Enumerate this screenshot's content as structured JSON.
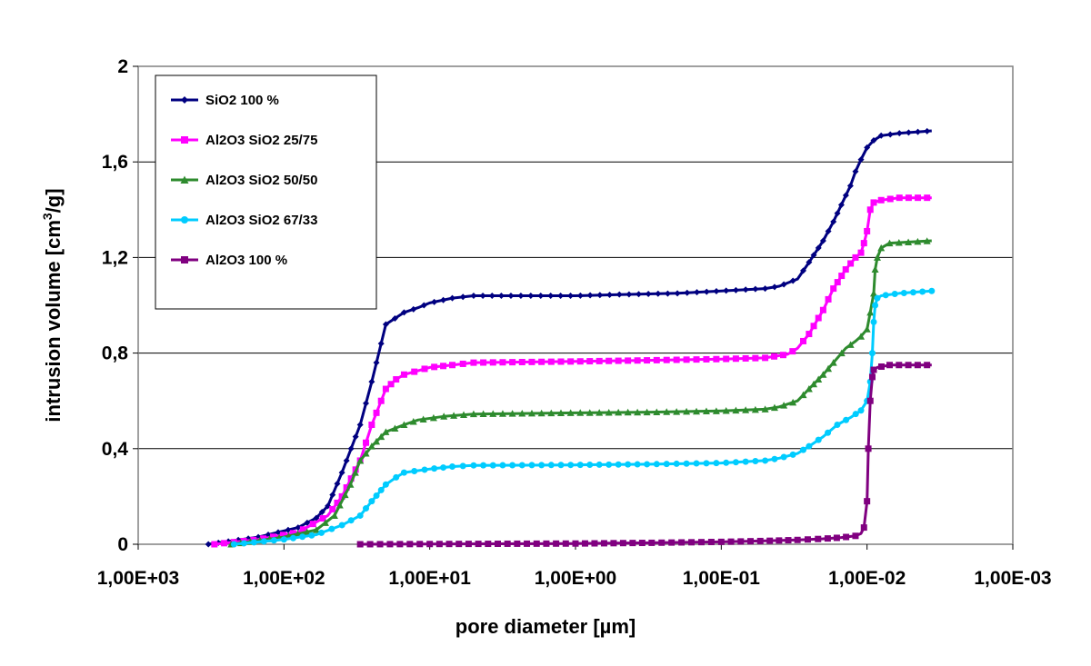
{
  "chart_data": {
    "type": "line",
    "xlabel": "pore diameter [µm]",
    "ylabel_main": "intrusion volume [cm",
    "ylabel_sup": "3",
    "ylabel_tail": "/g]",
    "x_scale": "log",
    "x_reversed": true,
    "xlim": [
      1000,
      0.001
    ],
    "ylim": [
      0,
      2
    ],
    "x_ticks": [
      1000,
      100,
      10,
      1,
      0.1,
      0.01,
      0.001
    ],
    "x_tick_labels": [
      "1,00E+03",
      "1,00E+02",
      "1,00E+01",
      "1,00E+00",
      "1,00E-01",
      "1,00E-02",
      "1,00E-03"
    ],
    "y_ticks": [
      0,
      0.4,
      0.8,
      1.2,
      1.6,
      2
    ],
    "y_tick_labels": [
      "0",
      "0,4",
      "0,8",
      "1,2",
      "1,6",
      "2"
    ],
    "grid": "horizontal major",
    "legend_position": "top-left inside",
    "series": [
      {
        "name": "SiO2 100 %",
        "color": "#000080",
        "marker": "diamond",
        "points": [
          [
            330,
            0.0
          ],
          [
            150,
            0.03
          ],
          [
            80,
            0.07
          ],
          [
            60,
            0.11
          ],
          [
            50,
            0.16
          ],
          [
            40,
            0.3
          ],
          [
            30,
            0.5
          ],
          [
            25,
            0.68
          ],
          [
            20,
            0.92
          ],
          [
            15,
            0.97
          ],
          [
            12,
            0.99
          ],
          [
            10,
            1.01
          ],
          [
            7,
            1.03
          ],
          [
            5,
            1.04
          ],
          [
            3,
            1.04
          ],
          [
            1,
            1.04
          ],
          [
            0.5,
            1.045
          ],
          [
            0.2,
            1.05
          ],
          [
            0.1,
            1.06
          ],
          [
            0.05,
            1.07
          ],
          [
            0.04,
            1.08
          ],
          [
            0.03,
            1.11
          ],
          [
            0.025,
            1.18
          ],
          [
            0.02,
            1.27
          ],
          [
            0.017,
            1.35
          ],
          [
            0.015,
            1.42
          ],
          [
            0.013,
            1.5
          ],
          [
            0.012,
            1.56
          ],
          [
            0.011,
            1.61
          ],
          [
            0.01,
            1.66
          ],
          [
            0.009,
            1.69
          ],
          [
            0.008,
            1.71
          ],
          [
            0.006,
            1.72
          ],
          [
            0.0036,
            1.73
          ]
        ]
      },
      {
        "name": "Al2O3 SiO2 25/75",
        "color": "#FF00FF",
        "marker": "square",
        "points": [
          [
            300,
            0.0
          ],
          [
            150,
            0.02
          ],
          [
            80,
            0.05
          ],
          [
            50,
            0.12
          ],
          [
            40,
            0.2
          ],
          [
            30,
            0.35
          ],
          [
            25,
            0.5
          ],
          [
            20,
            0.65
          ],
          [
            17,
            0.69
          ],
          [
            15,
            0.71
          ],
          [
            10,
            0.74
          ],
          [
            7,
            0.75
          ],
          [
            5,
            0.76
          ],
          [
            1,
            0.765
          ],
          [
            0.3,
            0.77
          ],
          [
            0.1,
            0.775
          ],
          [
            0.05,
            0.78
          ],
          [
            0.035,
            0.795
          ],
          [
            0.03,
            0.82
          ],
          [
            0.025,
            0.88
          ],
          [
            0.02,
            0.98
          ],
          [
            0.017,
            1.07
          ],
          [
            0.014,
            1.15
          ],
          [
            0.012,
            1.2
          ],
          [
            0.011,
            1.22
          ],
          [
            0.0105,
            1.26
          ],
          [
            0.01,
            1.31
          ],
          [
            0.0095,
            1.4
          ],
          [
            0.009,
            1.43
          ],
          [
            0.008,
            1.44
          ],
          [
            0.006,
            1.45
          ],
          [
            0.0036,
            1.45
          ]
        ]
      },
      {
        "name": "Al2O3 SiO2 50/50",
        "color": "#2E8B2E",
        "marker": "triangle",
        "points": [
          [
            230,
            0.0
          ],
          [
            100,
            0.03
          ],
          [
            60,
            0.06
          ],
          [
            45,
            0.12
          ],
          [
            35,
            0.25
          ],
          [
            30,
            0.35
          ],
          [
            25,
            0.41
          ],
          [
            20,
            0.47
          ],
          [
            15,
            0.5
          ],
          [
            12,
            0.52
          ],
          [
            8,
            0.535
          ],
          [
            5,
            0.545
          ],
          [
            1,
            0.55
          ],
          [
            0.3,
            0.553
          ],
          [
            0.1,
            0.558
          ],
          [
            0.05,
            0.565
          ],
          [
            0.04,
            0.575
          ],
          [
            0.03,
            0.6
          ],
          [
            0.025,
            0.65
          ],
          [
            0.02,
            0.71
          ],
          [
            0.017,
            0.76
          ],
          [
            0.014,
            0.82
          ],
          [
            0.012,
            0.85
          ],
          [
            0.011,
            0.87
          ],
          [
            0.01,
            0.9
          ],
          [
            0.0095,
            0.97
          ],
          [
            0.009,
            1.05
          ],
          [
            0.0088,
            1.15
          ],
          [
            0.0085,
            1.2
          ],
          [
            0.008,
            1.24
          ],
          [
            0.007,
            1.26
          ],
          [
            0.0036,
            1.27
          ]
        ]
      },
      {
        "name": "Al2O3 SiO2 67/33",
        "color": "#00CCFF",
        "marker": "circle",
        "points": [
          [
            220,
            0.0
          ],
          [
            100,
            0.02
          ],
          [
            60,
            0.04
          ],
          [
            40,
            0.08
          ],
          [
            30,
            0.12
          ],
          [
            25,
            0.18
          ],
          [
            20,
            0.25
          ],
          [
            17,
            0.28
          ],
          [
            15,
            0.3
          ],
          [
            10,
            0.315
          ],
          [
            7,
            0.325
          ],
          [
            5,
            0.33
          ],
          [
            1,
            0.332
          ],
          [
            0.3,
            0.335
          ],
          [
            0.1,
            0.34
          ],
          [
            0.05,
            0.35
          ],
          [
            0.04,
            0.36
          ],
          [
            0.03,
            0.38
          ],
          [
            0.025,
            0.41
          ],
          [
            0.02,
            0.45
          ],
          [
            0.016,
            0.5
          ],
          [
            0.013,
            0.53
          ],
          [
            0.011,
            0.56
          ],
          [
            0.01,
            0.6
          ],
          [
            0.0095,
            0.68
          ],
          [
            0.0092,
            0.8
          ],
          [
            0.009,
            0.93
          ],
          [
            0.0088,
            1.0
          ],
          [
            0.0085,
            1.03
          ],
          [
            0.008,
            1.04
          ],
          [
            0.006,
            1.05
          ],
          [
            0.0036,
            1.06
          ]
        ]
      },
      {
        "name": "Al2O3 100 %",
        "color": "#800080",
        "marker": "square",
        "points": [
          [
            30,
            0.0
          ],
          [
            10,
            0.001
          ],
          [
            1,
            0.003
          ],
          [
            0.3,
            0.006
          ],
          [
            0.1,
            0.01
          ],
          [
            0.05,
            0.014
          ],
          [
            0.03,
            0.018
          ],
          [
            0.02,
            0.023
          ],
          [
            0.015,
            0.028
          ],
          [
            0.012,
            0.035
          ],
          [
            0.011,
            0.045
          ],
          [
            0.0105,
            0.07
          ],
          [
            0.01,
            0.18
          ],
          [
            0.0098,
            0.4
          ],
          [
            0.0095,
            0.6
          ],
          [
            0.0092,
            0.7
          ],
          [
            0.009,
            0.73
          ],
          [
            0.0085,
            0.74
          ],
          [
            0.007,
            0.75
          ],
          [
            0.0036,
            0.75
          ]
        ]
      }
    ]
  }
}
